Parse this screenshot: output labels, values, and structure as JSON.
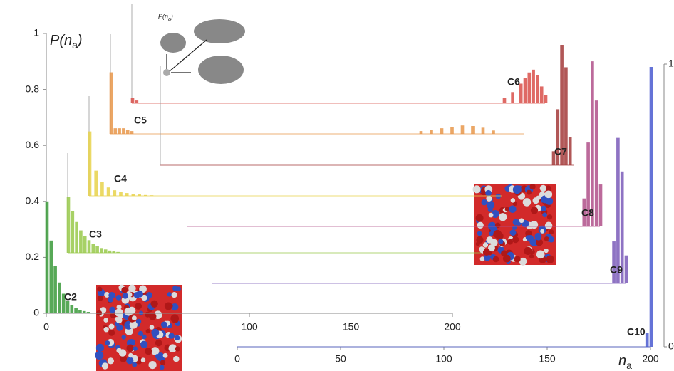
{
  "chart_data": {
    "type": "bar",
    "y_label": [
      "P(n",
      "a",
      ")"
    ],
    "x_label": [
      "n",
      "a"
    ],
    "inset_label": [
      "P(n",
      "a",
      ")"
    ],
    "ylim": [
      0,
      1
    ],
    "yticks": [
      0,
      0.2,
      0.4,
      0.6,
      0.8,
      1
    ],
    "xlim": [
      0,
      200
    ],
    "xticks": [
      0,
      100,
      150,
      200
    ],
    "x2lim": [
      0,
      200
    ],
    "x2ticks": [
      0,
      50,
      100,
      150,
      200
    ],
    "y2lim": [
      0,
      1
    ],
    "y2ticks": [
      0,
      1
    ],
    "series": [
      {
        "name": "C2",
        "color": "#3a9a3a",
        "x": [
          0,
          2,
          4,
          6,
          8,
          10,
          12,
          14,
          16,
          18,
          20
        ],
        "values": [
          0.4,
          0.26,
          0.17,
          0.11,
          0.07,
          0.045,
          0.03,
          0.02,
          0.012,
          0.008,
          0.005
        ]
      },
      {
        "name": "C3",
        "color": "#98c94a",
        "x": [
          0,
          2,
          4,
          6,
          8,
          10,
          12,
          14,
          16,
          18,
          20,
          22,
          24
        ],
        "values": [
          0.2,
          0.15,
          0.11,
          0.08,
          0.06,
          0.045,
          0.033,
          0.024,
          0.017,
          0.012,
          0.008,
          0.005,
          0.003
        ]
      },
      {
        "name": "C4",
        "color": "#e8d24a",
        "x": [
          0,
          3,
          6,
          9,
          12,
          15,
          18,
          21,
          24,
          27,
          30
        ],
        "values": [
          0.23,
          0.09,
          0.05,
          0.03,
          0.02,
          0.014,
          0.01,
          0.007,
          0.005,
          0.003,
          0.002
        ]
      },
      {
        "name": "C5",
        "color": "#e8964a",
        "x": [
          0,
          2,
          4,
          6,
          8,
          10,
          150,
          155,
          160,
          165,
          170,
          175,
          180,
          185
        ],
        "values": [
          0.22,
          0.02,
          0.02,
          0.02,
          0.015,
          0.01,
          0.01,
          0.015,
          0.02,
          0.025,
          0.03,
          0.028,
          0.022,
          0.012
        ]
      },
      {
        "name": "C6",
        "color": "#d9504a",
        "x": [
          0,
          2,
          180,
          184,
          188,
          190,
          192,
          194,
          196,
          198,
          200
        ],
        "values": [
          0.02,
          0.01,
          0.02,
          0.04,
          0.07,
          0.09,
          0.11,
          0.12,
          0.1,
          0.06,
          0.03
        ]
      },
      {
        "name": "C7",
        "color": "#a33a3a",
        "x": [
          190,
          192,
          194,
          196,
          198
        ],
        "values": [
          0.05,
          0.2,
          0.43,
          0.35,
          0.1
        ]
      },
      {
        "name": "C8",
        "color": "#b0508a",
        "x": [
          192,
          194,
          196,
          198,
          200
        ],
        "values": [
          0.1,
          0.3,
          0.59,
          0.45,
          0.15
        ]
      },
      {
        "name": "C9",
        "color": "#7a5ab8",
        "x": [
          194,
          196,
          198,
          200
        ],
        "values": [
          0.15,
          0.52,
          0.4,
          0.1
        ]
      },
      {
        "name": "C10",
        "color": "#4a5ad0",
        "x": [
          198,
          200
        ],
        "values": [
          0.05,
          1.0
        ]
      }
    ]
  }
}
